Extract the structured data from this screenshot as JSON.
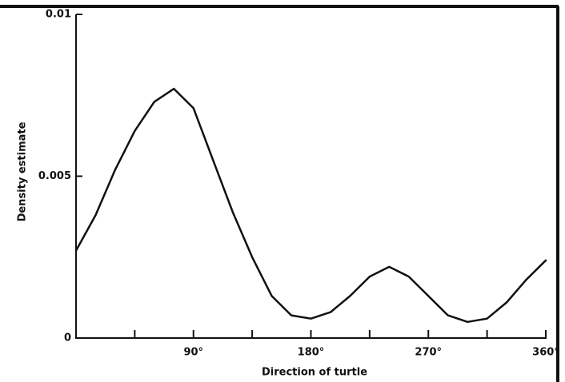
{
  "chart_data": {
    "type": "line",
    "x_label": "Direction of turtle",
    "y_label": "Density estimate",
    "x": [
      0,
      15,
      30,
      45,
      60,
      75,
      90,
      105,
      120,
      135,
      150,
      165,
      180,
      195,
      210,
      225,
      240,
      255,
      270,
      285,
      300,
      315,
      330,
      345,
      360
    ],
    "values": [
      0.0027,
      0.0038,
      0.0052,
      0.0064,
      0.0073,
      0.0077,
      0.0071,
      0.0055,
      0.0039,
      0.0025,
      0.0013,
      0.0007,
      0.0006,
      0.0008,
      0.0013,
      0.0019,
      0.0022,
      0.0019,
      0.0013,
      0.0007,
      0.0005,
      0.0006,
      0.0011,
      0.0018,
      0.0024
    ],
    "color": "#111111",
    "xlim": [
      0,
      360
    ],
    "xticks": [
      {
        "value": 90,
        "label": "90°"
      },
      {
        "value": 180,
        "label": "180°"
      },
      {
        "value": 270,
        "label": "270°"
      },
      {
        "value": 360,
        "label": "360°"
      }
    ],
    "x_minor_ticks": [
      45,
      135,
      225,
      315
    ],
    "ylim": [
      0,
      0.01
    ],
    "yticks": [
      0,
      0.005,
      0.01
    ]
  }
}
